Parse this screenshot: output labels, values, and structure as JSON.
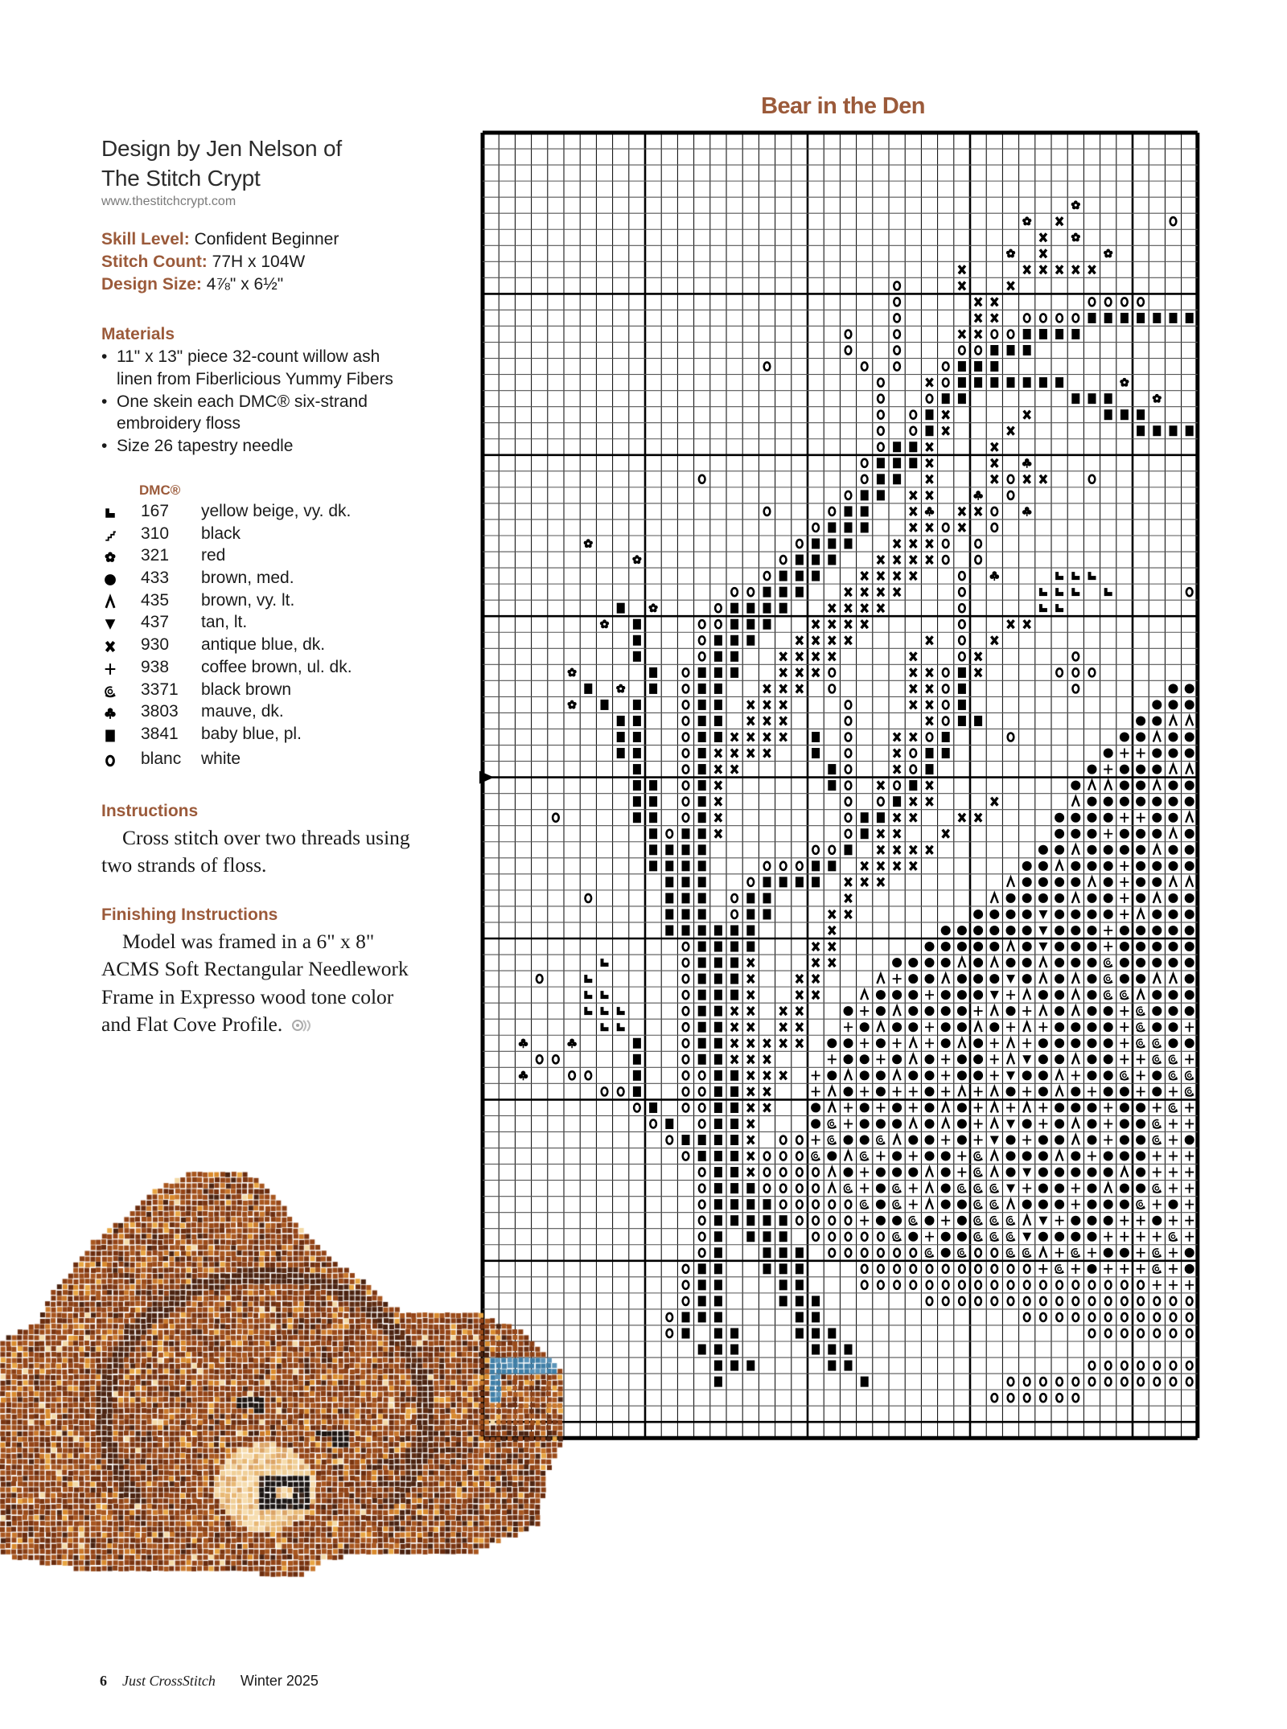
{
  "designer": {
    "line1": "Design by Jen Nelson of",
    "line2": "The Stitch Crypt",
    "website": "www.thestitchcrypt.com"
  },
  "specs": [
    {
      "label": "Skill Level:",
      "value": "Confident Beginner"
    },
    {
      "label": "Stitch Count:",
      "value": "77H x 104W"
    },
    {
      "label": "Design Size:",
      "value": "4⅞\" x 6½\""
    }
  ],
  "materials": {
    "heading": "Materials",
    "items": [
      {
        "lines": [
          "11\" x 13\" piece 32-count willow ash",
          "linen from Fiberlicious Yummy Fibers"
        ]
      },
      {
        "lines": [
          "One skein each DMC® six-strand",
          "embroidery floss"
        ]
      },
      {
        "lines": [
          "Size 26 tapestry needle"
        ]
      }
    ]
  },
  "key": {
    "heading": "DMC®",
    "rows": [
      {
        "symbol": "L",
        "icon": "l-block-icon",
        "dmc": "167",
        "name": "yellow beige, vy. dk."
      },
      {
        "symbol": "/",
        "icon": "stair-stroke-icon",
        "dmc": "310",
        "name": "black"
      },
      {
        "symbol": "r",
        "icon": "flower-icon",
        "dmc": "321",
        "name": "red"
      },
      {
        "symbol": "D",
        "icon": "filled-circle-icon",
        "dmc": "433",
        "name": "brown, med."
      },
      {
        "symbol": "A",
        "icon": "caret-icon",
        "dmc": "435",
        "name": "brown, vy. lt."
      },
      {
        "symbol": "V",
        "icon": "down-triangle-icon",
        "dmc": "437",
        "name": "tan, lt."
      },
      {
        "symbol": "x",
        "icon": "bold-x-icon",
        "dmc": "930",
        "name": "antique blue, dk."
      },
      {
        "symbol": "+",
        "icon": "plus-icon",
        "dmc": "938",
        "name": "coffee brown, ul. dk."
      },
      {
        "symbol": "S",
        "icon": "spiral-icon",
        "dmc": "3371",
        "name": "black brown"
      },
      {
        "symbol": "C",
        "icon": "club-icon",
        "dmc": "3803",
        "name": "mauve, dk."
      },
      {
        "symbol": "B",
        "icon": "filled-square-icon",
        "dmc": "3841",
        "name": "baby blue, pl."
      },
      {
        "symbol": "o",
        "icon": "open-circle-icon",
        "dmc": "blanc",
        "name": "white"
      }
    ]
  },
  "instructions": {
    "heading": "Instructions",
    "lines": [
      "Cross stitch over two threads using",
      "two strands of floss."
    ]
  },
  "finishing": {
    "heading": "Finishing Instructions",
    "lines": [
      "Model was framed in a 6\" x 8\"",
      "ACMS Soft Rectangular Needlework",
      "Frame in Expresso wood tone color",
      "and Flat Cove Profile."
    ]
  },
  "footer": {
    "page": "6",
    "magazine": "Just CrossStitch",
    "issue": "Winter 2025"
  },
  "colors": {
    "heading": "#9b5a3a",
    "text": "#1a1a1a",
    "grid": "#000000"
  },
  "chart": {
    "title": "Bear in the Den",
    "center_arrow_row": 40,
    "rows": [
      ".......... .......... .......... .......... ....",
      ".......... .......... .......... .......... ....",
      ".......... .......... .......... .......... ....",
      ".......... .......... .......... .......... ....",
      ".......... .......... .......... ......r... ....",
      ".......... .......... .......... ...r.x.... ..o.",
      ".......... .......... .......... ....x.r... ....",
      ".......... .......... .......... ..r.x...r. ....",
      ".......... .......... .........x ...xxxxx.. ....",
      ".......... .......... .....o...x ..x....... ....",
      ".......... .......... .....o.... xx.....ooo o...",
      ".......... .......... .....o.... xx.ooooBBB BBBB",
      ".......... .......... ..o..o...x xooBBBB... ....",
      ".......... .......... ..o..o...o oBBB...... ....",
      ".......... .......o.. ...o.o..oB BB........ ....",
      ".......... .......... ....o..xoB BBBBBB...r ....",
      ".......... .......... ....o..oBB ......BBB. .r..",
      ".......... .......... ....o.oBx. ...x....BB B...",
      ".......... .......... ....o.oBx. ..x....... BBBB",
      ".......... .......... ....oBBx.. .x........ ....",
      ".......... .......... ...oBBBx.. .x.C...... ....",
      ".......... ...o...... ...oBB.x.. .xoxx..o.. ....",
      ".......... .......... ..oBB.xx.. C.o....... ....",
      ".......... .......o.. .oBB..xC.x xo.C...... ....",
      ".......... .......... oBBB..xxox .o........ ....",
      "......r... .........o BBB..xxxo. o......... ....",
      ".........r ........oB BB..xxxxo. o......... ....",
      ".......... .......oBB B..xxxx..o .C...LLL.. ....",
      ".......... .....ooBBB ..xxxx...o ....LLL.L. ...o",
      "........B. r...oBBBB. .xxxx....o ....LL.... ....",
      ".......r.B ...ooBBB.. xxxx.....o ..xx...... ....",
      ".........B ...oBBB..x xxx....x.o .x........ ....",
      ".........B ...oBB..xx xx....x..o x.....o... ....",
      ".....r.... B.oBBB..xx xo....xxoB x....ooo.. ....",
      "......B.r. B.oBB..xxx .o....xxoB ......o... ..DD",
      ".....r.B.B ..oBB.xxx. ..o...xxoB .......... .DDD",
      "........BB ..oBB.xxx. ..o....xoB B......... DDAA",
      "........BB ..oBBxxxx. B.o..xxoB. ..o......D DADD",
      "........BB ..oBxxxx.. B.o..xoBB. ........D+ +DDD",
      ".........B ..oBxx.... .Bo..xoB.. .......D+D DDAA",
      ".........B B.oBx..... .Bo.xoBx.. ......DAAD DADD",
      ".........B B.oBx..... ..o.oBxx.. .x....ADDD DDDD",
      "....o....B B.oBx..... ..oBBxx..x x....DDDD+ +DDA",
      ".......... BoBBx..... ..oBxx..x. .....DDD+D DDAD",
      ".......... BBBB...... ooB.xxxx.. ....DDADDD DADD",
      ".......... BBBB...ooo BB.xxxx... ...DDADDD+ DDDD",
      ".......... .BBB..oBBB B.xxx..... ..ADDDDAD+ DDAA",
      "......o... .BBB.oBB.. ..x....... .ADDDDADD+ DADD",
      ".......... .BBB.oBB.. .xx....... DDDDVDDDD+ ADDD",
      ".......... .BBBBBB... .x......DD DDDDVDDD+D DDDD",
      ".......... ..oBBBB... xx.....DDD DDADVDDD+D DDDD",
      ".......L.. ..oBBBx... xx...DDDDA DADDADDDSD DDDD",
      "...o..L... ..oBBBx..x x...A+DDAD DDVDADADSD DAAD",
      "......LL.. ..oBBBx..x x..ADDD+DD DV+ADDADSS ADDD",
      "......LLL. ..oBBxx.xx ..D+DADDDD +AD+ADADD+ SDDD",
      ".......LL. ..oBBxx.xx ..+DADD+DD AD+A+DDDD+ SDD+",
      "..C..C...B ..oBBxxxxx .DD+D+A+DA D+A+DDDDD+ SSDD",
      "...oo....B ..oBBxxx.. .+DD+DAD+D D+AVDDADD+ +SS+",
      "..C..oo..B ..ooBBxxx. +DADDADD+D D+VDDA+DDS +DSS",
      ".......ooB ..ooBBxx.. +AD+D++D+A +AD+DAD+DD +D+S",
      ".........o B.ooBBxx.. DA+D+D+DAD +A+A+DDD+D D+S+",
      ".......... oB.oBBx... DS+DDDADAD +AVD+DAD+D DS++",
      ".......... .oBBBBx.oo +SDDSADD+D +VD+DDAD+D DS+D",
      ".......... ..oBBBxooo SDAS+D+DD+ SADDDAD+DD D+++",
      ".......... ...oBBxooo oAD+DDDAD+ SADVDDDDDA D+++",
      ".......... ...oBBBooo oAS+DS+ADS SSV+DD+DAD DS++",
      ".......... ...oBBBBoo oooSDS+ADD SSADDD+DDD S+D+",
      ".......... ...oBBBBBo ooo+DDSD+D SSSAV+DDD+ +D++",
      ".......... ...oB.BBB. oooooSD+DD SSSVDDDD++ ++S+",
      ".......... ...oB..BBB .ooooooSDS ooSSA+S+DD +S+D",
      ".......... ..oBB..BBB ...ooooooo oooo+S+D++ +S+D",
      ".......... ..oBB...BB ...ooooooo oooooooooo o+++",
      ".......... ..oBB...BB B......ooo oooooooooo oooo",
      ".......... .oBBB....B B......... ...ooooooo oooo",
      ".......... .oB.BB...B BB........ .......ooo oooo",
      ".......... ...BBB.... BBB....... .......... ....",
      ".......... ....BBB... .BB....... .......ooo oooo",
      ".......... ....B..... ...B...... ..oooooooo oooo",
      ".......... .......... .......... .oooooo... ....",
      ".......... .......... .......... .......... ....",
      ".......... .......... .......... .......... ...."
    ]
  }
}
